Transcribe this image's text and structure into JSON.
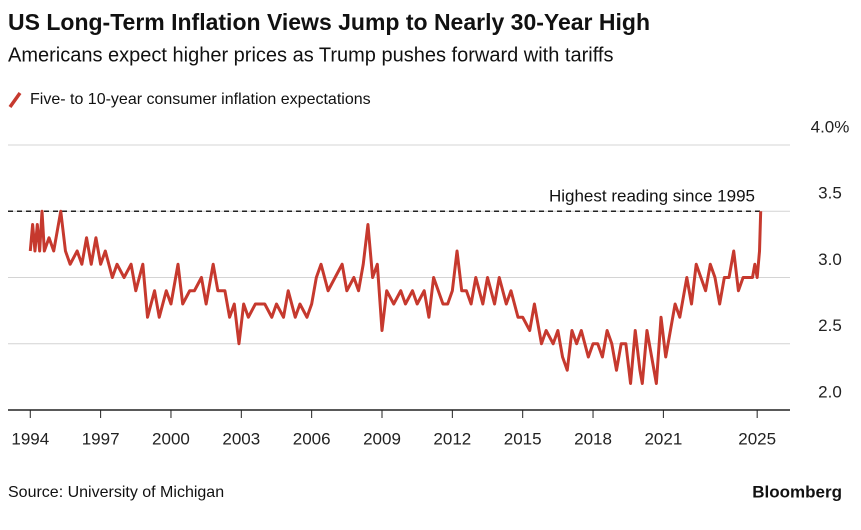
{
  "chart_data": {
    "type": "line",
    "title": "US Long-Term Inflation Views Jump to Nearly 30-Year High",
    "subtitle": "Americans expect higher prices as Trump pushes forward with tariffs",
    "source": "Source: University of Michigan",
    "brand": "Bloomberg",
    "x": [
      1994.0,
      1994.1,
      1994.2,
      1994.3,
      1994.4,
      1994.5,
      1994.6,
      1994.8,
      1995.0,
      1995.2,
      1995.3,
      1995.5,
      1995.7,
      1996.0,
      1996.2,
      1996.4,
      1996.6,
      1996.8,
      1997.0,
      1997.2,
      1997.5,
      1997.7,
      1998.0,
      1998.3,
      1998.5,
      1998.8,
      1999.0,
      1999.3,
      1999.5,
      1999.8,
      2000.0,
      2000.3,
      2000.5,
      2000.8,
      2001.0,
      2001.3,
      2001.5,
      2001.8,
      2002.0,
      2002.3,
      2002.5,
      2002.7,
      2002.9,
      2003.1,
      2003.3,
      2003.6,
      2004.0,
      2004.3,
      2004.5,
      2004.8,
      2005.0,
      2005.3,
      2005.5,
      2005.8,
      2006.0,
      2006.2,
      2006.4,
      2006.7,
      2007.0,
      2007.3,
      2007.5,
      2007.8,
      2008.0,
      2008.2,
      2008.4,
      2008.6,
      2008.8,
      2009.0,
      2009.2,
      2009.5,
      2009.8,
      2010.0,
      2010.3,
      2010.5,
      2010.8,
      2011.0,
      2011.2,
      2011.4,
      2011.6,
      2011.8,
      2012.0,
      2012.2,
      2012.4,
      2012.6,
      2012.8,
      2013.0,
      2013.3,
      2013.5,
      2013.8,
      2014.0,
      2014.3,
      2014.5,
      2014.8,
      2015.0,
      2015.3,
      2015.5,
      2015.8,
      2016.0,
      2016.3,
      2016.5,
      2016.7,
      2016.9,
      2017.1,
      2017.3,
      2017.5,
      2017.8,
      2018.0,
      2018.2,
      2018.4,
      2018.6,
      2018.8,
      2019.0,
      2019.2,
      2019.4,
      2019.6,
      2019.8,
      2020.0,
      2020.1,
      2020.3,
      2020.5,
      2020.7,
      2020.9,
      2021.1,
      2021.3,
      2021.5,
      2021.7,
      2021.9,
      2022.0,
      2022.2,
      2022.4,
      2022.6,
      2022.8,
      2023.0,
      2023.2,
      2023.4,
      2023.6,
      2023.8,
      2024.0,
      2024.2,
      2024.4,
      2024.6,
      2024.8,
      2024.9,
      2025.0,
      2025.1,
      2025.15
    ],
    "series": [
      {
        "name": "Five- to 10-year consumer inflation expectations",
        "color": "#c6392e",
        "values": [
          3.2,
          3.4,
          3.2,
          3.4,
          3.2,
          3.5,
          3.2,
          3.3,
          3.2,
          3.4,
          3.5,
          3.2,
          3.1,
          3.2,
          3.1,
          3.3,
          3.1,
          3.3,
          3.1,
          3.2,
          3.0,
          3.1,
          3.0,
          3.1,
          2.9,
          3.1,
          2.7,
          2.9,
          2.7,
          2.9,
          2.8,
          3.1,
          2.8,
          2.9,
          2.9,
          3.0,
          2.8,
          3.1,
          2.9,
          2.9,
          2.7,
          2.8,
          2.5,
          2.8,
          2.7,
          2.8,
          2.8,
          2.7,
          2.8,
          2.7,
          2.9,
          2.7,
          2.8,
          2.7,
          2.8,
          3.0,
          3.1,
          2.9,
          3.0,
          3.1,
          2.9,
          3.0,
          2.9,
          3.1,
          3.4,
          3.0,
          3.1,
          2.6,
          2.9,
          2.8,
          2.9,
          2.8,
          2.9,
          2.8,
          2.9,
          2.7,
          3.0,
          2.9,
          2.8,
          2.8,
          2.9,
          3.2,
          2.9,
          2.9,
          2.8,
          3.0,
          2.8,
          3.0,
          2.8,
          3.0,
          2.8,
          2.9,
          2.7,
          2.7,
          2.6,
          2.8,
          2.5,
          2.6,
          2.5,
          2.6,
          2.4,
          2.3,
          2.6,
          2.5,
          2.6,
          2.4,
          2.5,
          2.5,
          2.4,
          2.6,
          2.5,
          2.3,
          2.5,
          2.5,
          2.2,
          2.6,
          2.3,
          2.2,
          2.6,
          2.4,
          2.2,
          2.7,
          2.4,
          2.6,
          2.8,
          2.7,
          2.9,
          3.0,
          2.8,
          3.1,
          3.0,
          2.9,
          3.1,
          3.0,
          2.8,
          3.0,
          3.0,
          3.2,
          2.9,
          3.0,
          3.0,
          3.0,
          3.1,
          3.0,
          3.2,
          3.5
        ]
      }
    ],
    "xlim": [
      1993.05,
      2026.4
    ],
    "xticks": [
      1994,
      1997,
      2000,
      2003,
      2006,
      2009,
      2012,
      2015,
      2018,
      2021,
      2025
    ],
    "ylim": [
      2,
      4
    ],
    "yticks": [
      {
        "value": 2,
        "label": "2.0"
      },
      2.5,
      {
        "value": 3,
        "label": "3.0"
      },
      3.5,
      {
        "value": 4,
        "label": "4.0%"
      }
    ],
    "grid": true,
    "annotations": [
      {
        "text": "Highest reading since 1995",
        "y": 3.5
      }
    ]
  }
}
